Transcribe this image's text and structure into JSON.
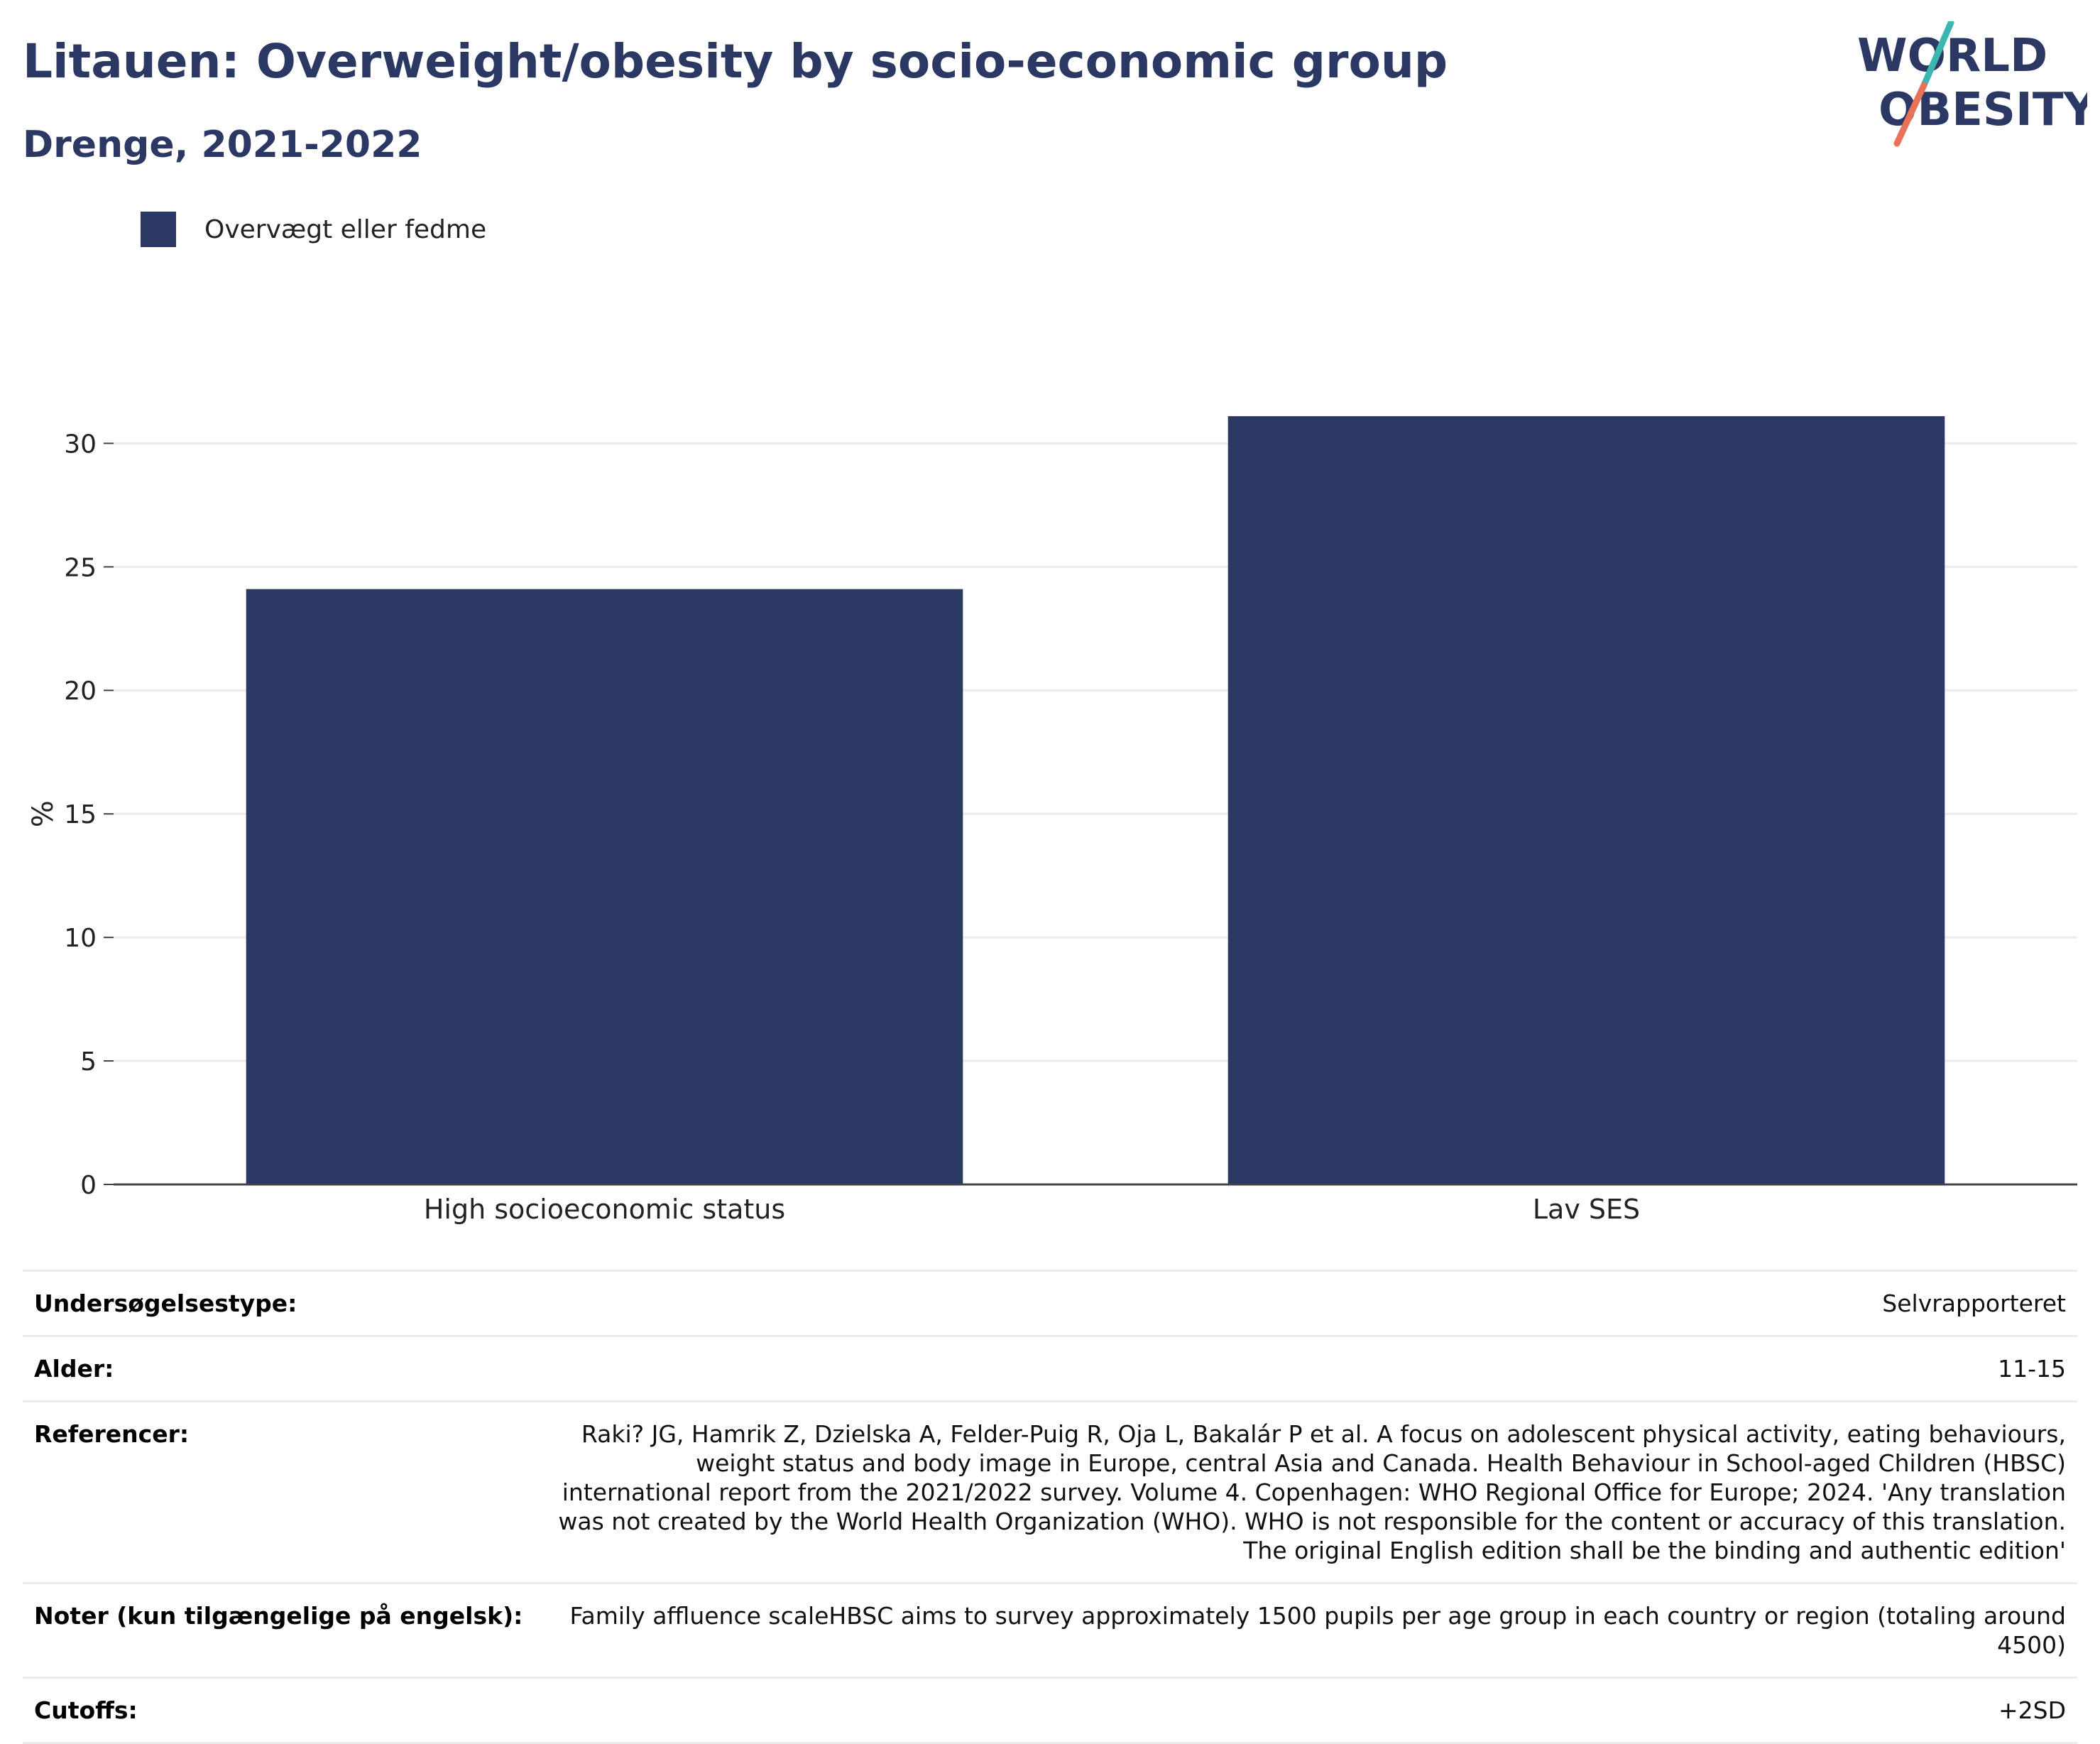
{
  "header": {
    "title": "Litauen: Overweight/obesity by socio-economic group",
    "subtitle": "Drenge, 2021-2022",
    "logo_line1": "WORLD",
    "logo_line2": "OBESITY"
  },
  "colors": {
    "bar": "#2b3864",
    "title": "#2b3864",
    "logo_text": "#2b3864",
    "logo_slash_top": "#3bb6b0",
    "logo_slash_bottom": "#e8735a",
    "grid": "#ebebeb",
    "axis": "#444444"
  },
  "legend": [
    {
      "label": "Overvægt eller fedme",
      "color": "#2b3864"
    }
  ],
  "chart_data": {
    "type": "bar",
    "categories": [
      "High socioeconomic status",
      "Lav SES"
    ],
    "series": [
      {
        "name": "Overvægt eller fedme",
        "values": [
          24.1,
          31.1
        ]
      }
    ],
    "ylabel": "%",
    "xlabel": "",
    "ylim": [
      0,
      33
    ],
    "yticks": [
      0,
      5,
      10,
      15,
      20,
      25,
      30
    ],
    "grid": true,
    "legend_position": "top-left"
  },
  "meta": [
    {
      "label": "Undersøgelsestype:",
      "value": "Selvrapporteret"
    },
    {
      "label": "Alder:",
      "value": "11-15"
    },
    {
      "label": "Referencer:",
      "value": "Raki? JG, Hamrik Z, Dzielska A, Felder-Puig R, Oja L, Bakalár P et al. A focus on adolescent physical activity, eating behaviours, weight status and body image in Europe, central Asia and Canada. Health Behaviour in School-aged Children (HBSC) international report from the 2021/2022 survey. Volume 4. Copenhagen: WHO Regional Office for Europe; 2024. 'Any translation was not created by the World Health Organization (WHO). WHO is not responsible for the content or accuracy of this translation. The original English edition shall be the binding and authentic edition'"
    },
    {
      "label": "Noter (kun tilgængelige på engelsk):",
      "value": "Family affluence scaleHBSC aims to survey approximately 1500 pupils per age group in each country or region (totaling around 4500)"
    },
    {
      "label": "Cutoffs:",
      "value": "+2SD"
    }
  ]
}
